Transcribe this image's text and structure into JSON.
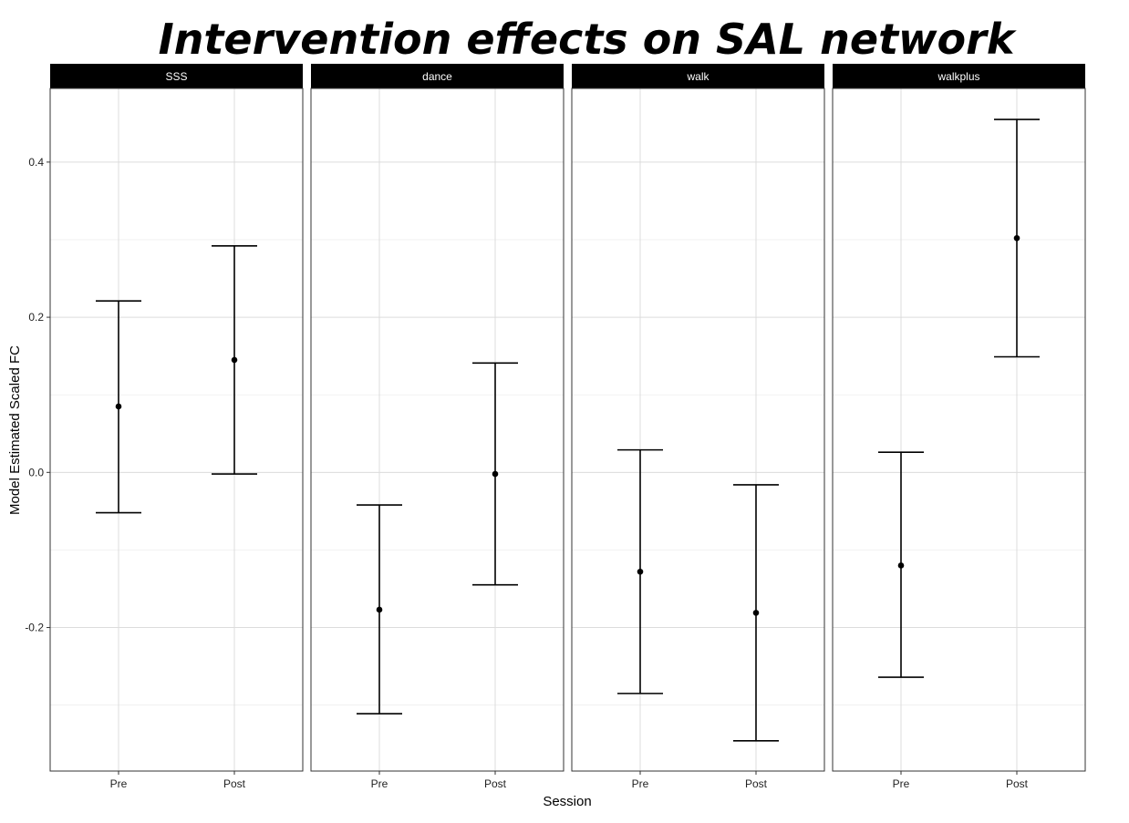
{
  "chart_data": {
    "type": "scatter",
    "title": "Intervention effects on SAL network",
    "xlabel": "Session",
    "ylabel": "Model Estimated Scaled FC",
    "categories": [
      "Pre",
      "Post"
    ],
    "y_ticks": [
      -0.2,
      0.0,
      0.2,
      0.4
    ],
    "y_tick_labels": [
      "-0.2",
      "0.0",
      "0.2",
      "0.4"
    ],
    "ylim": [
      -0.385,
      0.495
    ],
    "grid": true,
    "facets": [
      {
        "name": "SSS",
        "points": [
          {
            "x": "Pre",
            "y": 0.085,
            "lower": -0.052,
            "upper": 0.221
          },
          {
            "x": "Post",
            "y": 0.145,
            "lower": -0.002,
            "upper": 0.292
          }
        ]
      },
      {
        "name": "dance",
        "points": [
          {
            "x": "Pre",
            "y": -0.177,
            "lower": -0.311,
            "upper": -0.042
          },
          {
            "x": "Post",
            "y": -0.002,
            "lower": -0.145,
            "upper": 0.141
          }
        ]
      },
      {
        "name": "walk",
        "points": [
          {
            "x": "Pre",
            "y": -0.128,
            "lower": -0.285,
            "upper": 0.029
          },
          {
            "x": "Post",
            "y": -0.181,
            "lower": -0.346,
            "upper": -0.016
          }
        ]
      },
      {
        "name": "walkplus",
        "points": [
          {
            "x": "Pre",
            "y": -0.12,
            "lower": -0.264,
            "upper": 0.026
          },
          {
            "x": "Post",
            "y": 0.302,
            "lower": 0.149,
            "upper": 0.455
          }
        ]
      }
    ]
  }
}
